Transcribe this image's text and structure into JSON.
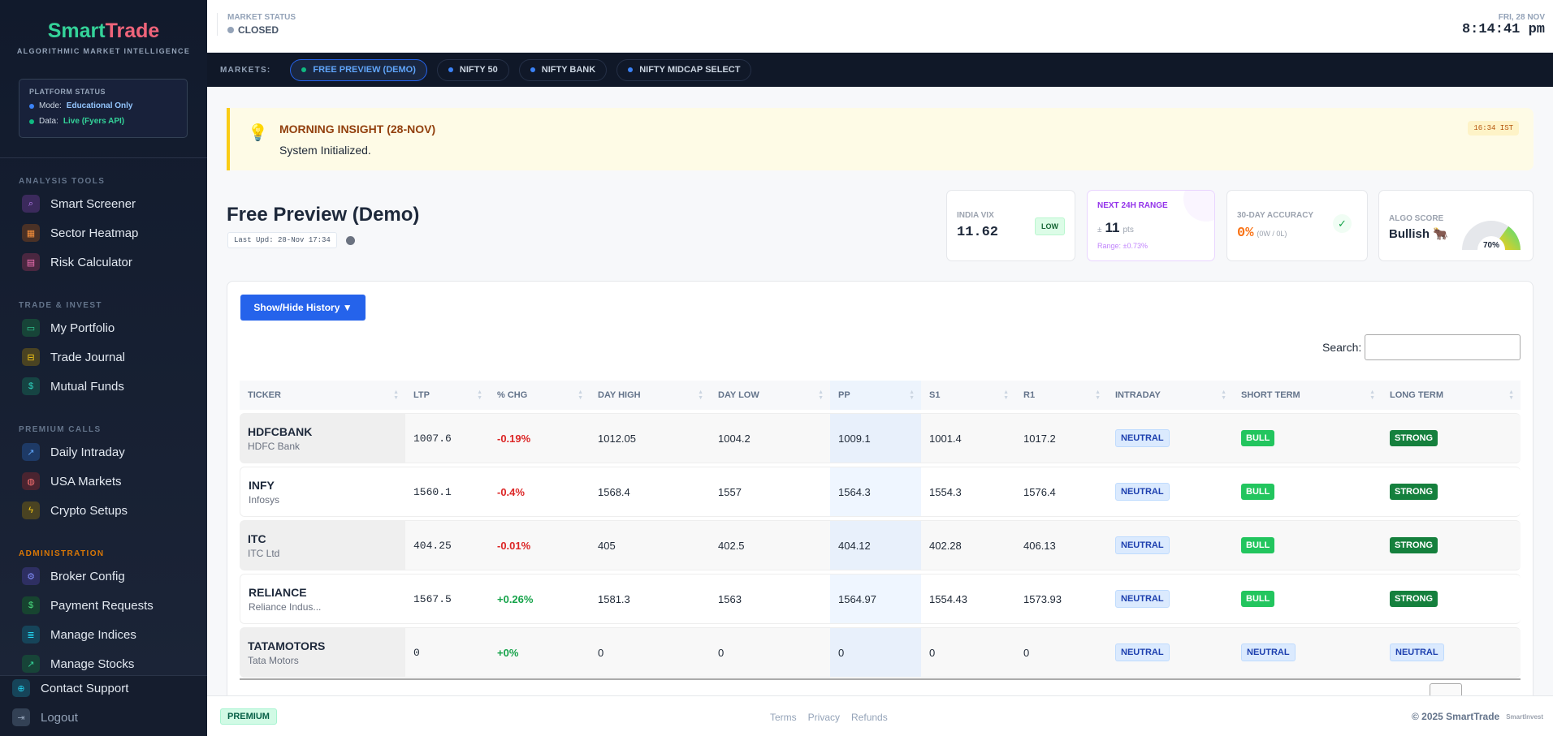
{
  "brand": {
    "name_a": "Smart",
    "name_b": "Trade",
    "tagline": "ALGORITHMIC MARKET INTELLIGENCE"
  },
  "platform_status": {
    "title": "PLATFORM STATUS",
    "mode_label": "Mode:",
    "mode_value": "Educational Only",
    "data_label": "Data:",
    "data_value": "Live (Fyers API)"
  },
  "sidebar": {
    "sections": [
      {
        "title": "ANALYSIS TOOLS",
        "items": [
          {
            "label": "Smart Screener",
            "icon": "search-icon"
          },
          {
            "label": "Sector Heatmap",
            "icon": "grid-icon"
          },
          {
            "label": "Risk Calculator",
            "icon": "calculator-icon"
          }
        ]
      },
      {
        "title": "TRADE & INVEST",
        "items": [
          {
            "label": "My Portfolio",
            "icon": "briefcase-icon"
          },
          {
            "label": "Trade Journal",
            "icon": "book-icon"
          },
          {
            "label": "Mutual Funds",
            "icon": "dollar-icon"
          }
        ]
      },
      {
        "title": "PREMIUM CALLS",
        "items": [
          {
            "label": "Daily Intraday",
            "icon": "trend-up-icon"
          },
          {
            "label": "USA Markets",
            "icon": "globe-icon"
          },
          {
            "label": "Crypto Setups",
            "icon": "bolt-icon"
          }
        ]
      },
      {
        "title": "ADMINISTRATION",
        "items": [
          {
            "label": "Broker Config",
            "icon": "gear-icon"
          },
          {
            "label": "Payment Requests",
            "icon": "dollar-icon"
          },
          {
            "label": "Manage Indices",
            "icon": "list-icon"
          },
          {
            "label": "Manage Stocks",
            "icon": "chart-icon"
          }
        ]
      }
    ],
    "bottom": [
      {
        "label": "Contact Support",
        "icon": "support-icon"
      },
      {
        "label": "Logout",
        "icon": "logout-icon"
      }
    ]
  },
  "header": {
    "market_status_label": "MARKET STATUS",
    "market_status": "CLOSED",
    "date": "FRI, 28 NOV",
    "time": "8:14:41 pm"
  },
  "markets": {
    "label": "MARKETS:",
    "tabs": [
      "FREE PREVIEW (DEMO)",
      "NIFTY 50",
      "NIFTY BANK",
      "NIFTY MIDCAP SELECT"
    ]
  },
  "insight": {
    "title": "MORNING INSIGHT (28-NOV)",
    "text": "System Initialized.",
    "time": "16:34 IST"
  },
  "page": {
    "title": "Free Preview (Demo)",
    "last_update": "Last Upd: 28-Nov 17:34"
  },
  "cards": {
    "vix": {
      "label": "INDIA VIX",
      "value": "11.62",
      "badge": "LOW"
    },
    "range": {
      "label": "NEXT 24H RANGE",
      "prefix": "±",
      "value": "11",
      "unit": "pts",
      "sub": "Range: ±0.73%"
    },
    "accuracy": {
      "label": "30-DAY ACCURACY",
      "value": "0%",
      "sub": "(0W / 0L)"
    },
    "algo": {
      "label": "ALGO SCORE",
      "value": "Bullish 🐂",
      "gauge": "70%",
      "gauge_fraction": 0.7
    }
  },
  "table": {
    "toggle": "Show/Hide History ▼",
    "search_label": "Search:",
    "search_value": "",
    "columns": [
      "TICKER",
      "LTP",
      "% CHG",
      "DAY HIGH",
      "DAY LOW",
      "PP",
      "S1",
      "R1",
      "INTRADAY",
      "SHORT TERM",
      "LONG TERM"
    ],
    "rows": [
      {
        "ticker": "HDFCBANK",
        "name": "HDFC Bank",
        "ltp": "1007.6",
        "chg": "-0.19%",
        "high": "1012.05",
        "low": "1004.2",
        "pp": "1009.1",
        "s1": "1001.4",
        "r1": "1017.2",
        "intraday": "NEUTRAL",
        "short": "BULL",
        "long": "STRONG"
      },
      {
        "ticker": "INFY",
        "name": "Infosys",
        "ltp": "1560.1",
        "chg": "-0.4%",
        "high": "1568.4",
        "low": "1557",
        "pp": "1564.3",
        "s1": "1554.3",
        "r1": "1576.4",
        "intraday": "NEUTRAL",
        "short": "BULL",
        "long": "STRONG"
      },
      {
        "ticker": "ITC",
        "name": "ITC Ltd",
        "ltp": "404.25",
        "chg": "-0.01%",
        "high": "405",
        "low": "402.5",
        "pp": "404.12",
        "s1": "402.28",
        "r1": "406.13",
        "intraday": "NEUTRAL",
        "short": "BULL",
        "long": "STRONG"
      },
      {
        "ticker": "RELIANCE",
        "name": "Reliance Indus...",
        "ltp": "1567.5",
        "chg": "+0.26%",
        "high": "1581.3",
        "low": "1563",
        "pp": "1564.97",
        "s1": "1554.43",
        "r1": "1573.93",
        "intraday": "NEUTRAL",
        "short": "BULL",
        "long": "STRONG"
      },
      {
        "ticker": "TATAMOTORS",
        "name": "Tata Motors",
        "ltp": "0",
        "chg": "+0%",
        "high": "0",
        "low": "0",
        "pp": "0",
        "s1": "0",
        "r1": "0",
        "intraday": "NEUTRAL",
        "short": "NEUTRAL",
        "long": "NEUTRAL"
      }
    ]
  },
  "footer": {
    "badge": "PREMIUM",
    "links": [
      "Terms",
      "Privacy",
      "Refunds"
    ],
    "copyright": "© 2025 SmartTrade",
    "partner": "SmartInvest"
  }
}
